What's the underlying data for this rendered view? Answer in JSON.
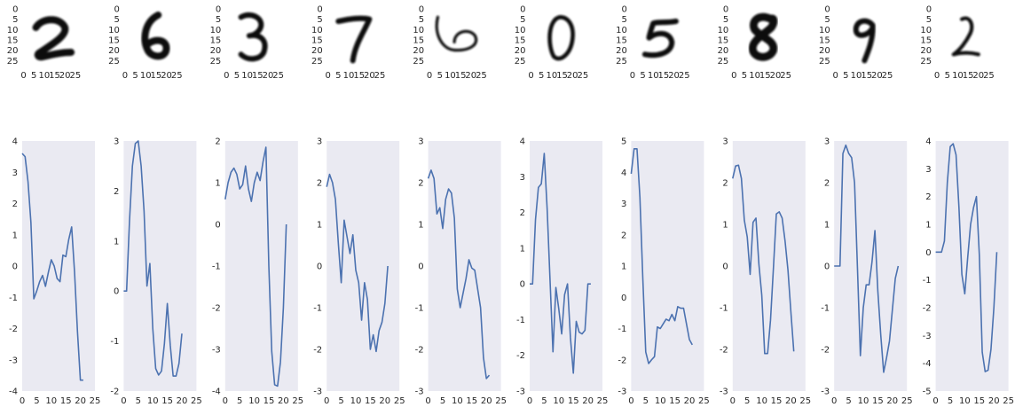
{
  "chart_data": {
    "type": "line",
    "layout": "grid of 10 columns: digit image on top row, line plot below",
    "image_axis": {
      "ticks": [
        "0",
        "5",
        "10",
        "15",
        "20",
        "25"
      ],
      "range": [
        0,
        27
      ]
    },
    "x_ticks": [
      "0",
      "5",
      "10",
      "15",
      "20",
      "25"
    ],
    "xlim": [
      0,
      25
    ],
    "grid": false,
    "series_color": "#4c72b0",
    "plot_background": "#eaeaf2",
    "panels": [
      {
        "digit": "2",
        "ylim": [
          -4,
          4
        ],
        "y_ticks": [
          "-4",
          "-3",
          "-2",
          "-1",
          "0",
          "1",
          "2",
          "3",
          "4"
        ],
        "x": [
          0,
          1,
          2,
          3,
          4,
          5,
          6,
          7,
          8,
          9,
          10,
          11,
          12,
          13,
          14,
          15,
          16,
          17,
          18,
          19,
          20,
          21
        ],
        "values": [
          3.6,
          3.5,
          2.7,
          1.4,
          -1.05,
          -0.8,
          -0.5,
          -0.3,
          -0.65,
          -0.2,
          0.2,
          0.0,
          -0.4,
          -0.5,
          0.35,
          0.3,
          0.85,
          1.25,
          -0.2,
          -2.1,
          -3.65,
          -3.65
        ]
      },
      {
        "digit": "6",
        "ylim": [
          -2,
          3
        ],
        "y_ticks": [
          "-2",
          "-1",
          "0",
          "1",
          "2",
          "3"
        ],
        "x": [
          0,
          1,
          2,
          3,
          4,
          5,
          6,
          7,
          8,
          9,
          10,
          11,
          12,
          13,
          14,
          15,
          16,
          17,
          18,
          19,
          20,
          21
        ],
        "values": [
          0.0,
          0.0,
          1.4,
          2.5,
          2.95,
          3.0,
          2.5,
          1.6,
          0.1,
          0.55,
          -0.75,
          -1.55,
          -1.68,
          -1.6,
          -1.05,
          -0.25,
          -1.08,
          -1.7,
          -1.7,
          -1.45,
          -0.85,
          null
        ]
      },
      {
        "digit": "3",
        "ylim": [
          -4,
          2
        ],
        "y_ticks": [
          "-4",
          "-3",
          "-2",
          "-1",
          "0",
          "1",
          "2"
        ],
        "x": [
          0,
          1,
          2,
          3,
          4,
          5,
          6,
          7,
          8,
          9,
          10,
          11,
          12,
          13,
          14,
          15,
          16,
          17,
          18,
          19,
          20,
          21
        ],
        "values": [
          0.6,
          1.0,
          1.25,
          1.35,
          1.2,
          0.85,
          0.95,
          1.4,
          0.85,
          0.55,
          1.0,
          1.25,
          1.05,
          1.5,
          1.85,
          -1.0,
          -3.05,
          -3.85,
          -3.88,
          -3.3,
          -2.0,
          0.0
        ]
      },
      {
        "digit": "7",
        "ylim": [
          -3,
          3
        ],
        "y_ticks": [
          "-3",
          "-2",
          "-1",
          "0",
          "1",
          "2",
          "3"
        ],
        "x": [
          0,
          1,
          2,
          3,
          4,
          5,
          6,
          7,
          8,
          9,
          10,
          11,
          12,
          13,
          14,
          15,
          16,
          17,
          18,
          19,
          20,
          21,
          22
        ],
        "values": [
          1.9,
          2.2,
          2.0,
          1.6,
          0.55,
          -0.4,
          1.1,
          0.7,
          0.3,
          0.75,
          -0.1,
          -0.4,
          -1.3,
          -0.4,
          -0.8,
          -2.0,
          -1.65,
          -2.05,
          -1.55,
          -1.35,
          -0.9,
          0.0,
          null
        ]
      },
      {
        "digit": "6",
        "ylim": [
          -3,
          3
        ],
        "y_ticks": [
          "-3",
          "-2",
          "-1",
          "0",
          "1",
          "2",
          "3"
        ],
        "x": [
          0,
          1,
          2,
          3,
          4,
          5,
          6,
          7,
          8,
          9,
          10,
          11,
          12,
          13,
          14,
          15,
          16,
          17,
          18,
          19,
          20,
          21
        ],
        "values": [
          2.1,
          2.3,
          2.1,
          1.25,
          1.4,
          0.9,
          1.6,
          1.85,
          1.75,
          1.15,
          -0.55,
          -1.0,
          -0.65,
          -0.3,
          0.15,
          -0.05,
          -0.1,
          -0.55,
          -1.0,
          -2.2,
          -2.7,
          -2.62
        ]
      },
      {
        "digit": "0",
        "ylim": [
          -3,
          4
        ],
        "y_ticks": [
          "-3",
          "-2",
          "-1",
          "0",
          "1",
          "2",
          "3",
          "4"
        ],
        "x": [
          0,
          1,
          2,
          3,
          4,
          5,
          6,
          7,
          8,
          9,
          10,
          11,
          12,
          13,
          14,
          15,
          16,
          17,
          18,
          19,
          20,
          21
        ],
        "values": [
          0.0,
          0.0,
          1.8,
          2.7,
          2.8,
          3.65,
          2.1,
          0.1,
          -1.9,
          -0.1,
          -0.7,
          -1.4,
          -0.3,
          0.0,
          -1.5,
          -2.5,
          -1.05,
          -1.35,
          -1.4,
          -1.3,
          0.0,
          0.0
        ]
      },
      {
        "digit": "5",
        "ylim": [
          -3,
          5
        ],
        "y_ticks": [
          "-3",
          "-2",
          "-1",
          "0",
          "1",
          "2",
          "3",
          "4",
          "5"
        ],
        "x": [
          0,
          1,
          2,
          3,
          4,
          5,
          6,
          7,
          8,
          9,
          10,
          11,
          12,
          13,
          14,
          15,
          16,
          17,
          18,
          19,
          20,
          21
        ],
        "values": [
          3.95,
          4.75,
          4.75,
          3.2,
          0.6,
          -1.75,
          -2.12,
          -2.0,
          -1.9,
          -0.95,
          -1.0,
          -0.85,
          -0.7,
          -0.75,
          -0.55,
          -0.75,
          -0.3,
          -0.35,
          -0.35,
          -0.85,
          -1.35,
          -1.52
        ]
      },
      {
        "digit": "8",
        "ylim": [
          -3,
          3
        ],
        "y_ticks": [
          "-3",
          "-2",
          "-1",
          "0",
          "1",
          "2",
          "3"
        ],
        "x": [
          0,
          1,
          2,
          3,
          4,
          5,
          6,
          7,
          8,
          9,
          10,
          11,
          12,
          13,
          14,
          15,
          16,
          17,
          18,
          19,
          20,
          21
        ],
        "values": [
          2.1,
          2.4,
          2.42,
          2.1,
          1.1,
          0.7,
          -0.2,
          1.05,
          1.15,
          0.05,
          -0.7,
          -2.1,
          -2.1,
          -1.3,
          -0.05,
          1.25,
          1.3,
          1.15,
          0.6,
          -0.1,
          -1.1,
          -2.05
        ]
      },
      {
        "digit": "9",
        "ylim": [
          -3,
          3
        ],
        "y_ticks": [
          "-3",
          "-2",
          "-1",
          "0",
          "1",
          "2",
          "3"
        ],
        "x": [
          0,
          1,
          2,
          3,
          4,
          5,
          6,
          7,
          8,
          9,
          10,
          11,
          12,
          13,
          14,
          15,
          16,
          17,
          18,
          19,
          20,
          21,
          22
        ],
        "values": [
          0.0,
          0.0,
          0.0,
          2.7,
          2.9,
          2.7,
          2.6,
          2.0,
          -0.05,
          -2.15,
          -1.0,
          -0.45,
          -0.45,
          0.1,
          0.85,
          -0.6,
          -1.65,
          -2.55,
          -2.2,
          -1.8,
          -1.05,
          -0.3,
          0.0
        ]
      },
      {
        "digit": "2",
        "ylim": [
          -5,
          4
        ],
        "y_ticks": [
          "-5",
          "-4",
          "-3",
          "-2",
          "-1",
          "0",
          "1",
          "2",
          "3",
          "4"
        ],
        "x": [
          0,
          1,
          2,
          3,
          4,
          5,
          6,
          7,
          8,
          9,
          10,
          11,
          12,
          13,
          14,
          15,
          16,
          17,
          18,
          19,
          20,
          21
        ],
        "values": [
          0.0,
          0.0,
          0.0,
          0.4,
          2.5,
          3.8,
          3.9,
          3.5,
          1.6,
          -0.8,
          -1.5,
          -0.2,
          1.0,
          1.6,
          2.0,
          -0.1,
          -3.6,
          -4.3,
          -4.25,
          -3.5,
          -2.0,
          0.0
        ]
      }
    ]
  }
}
